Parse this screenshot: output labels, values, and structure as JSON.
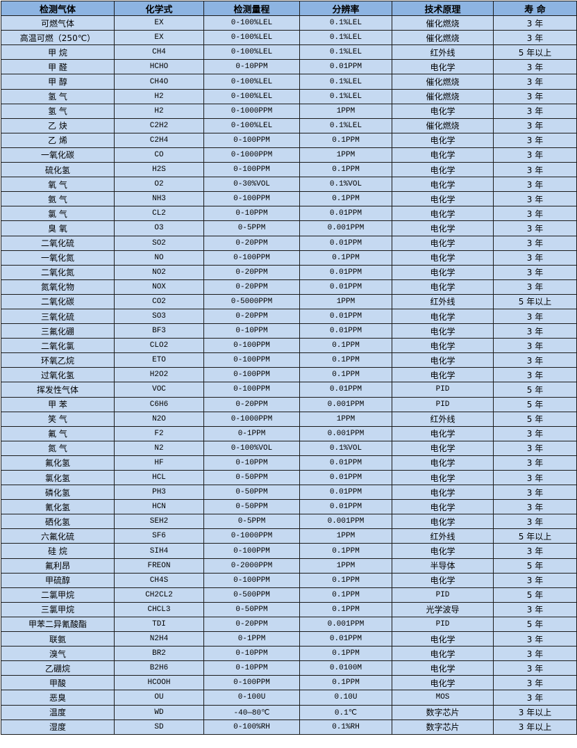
{
  "colors": {
    "header_bg": "#8DB4E2",
    "row_bg": "#C5D9F1",
    "border": "#1a1a1a"
  },
  "table": {
    "headers": [
      "检测气体",
      "化学式",
      "检测量程",
      "分辨率",
      "技术原理",
      "寿 命"
    ],
    "rows": [
      [
        "可燃气体",
        "EX",
        "0-100%LEL",
        "0.1%LEL",
        "催化燃烧",
        "3 年"
      ],
      [
        "高温可燃（250℃）",
        "EX",
        "0-100%LEL",
        "0.1%LEL",
        "催化燃烧",
        "3 年"
      ],
      [
        "甲 烷",
        "CH4",
        "0-100%LEL",
        "0.1%LEL",
        "红外线",
        "5 年以上"
      ],
      [
        "甲 醛",
        "HCHO",
        "0-10PPM",
        "0.01PPM",
        "电化学",
        "3 年"
      ],
      [
        "甲 醇",
        "CH4O",
        "0-100%LEL",
        "0.1%LEL",
        "催化燃烧",
        "3 年"
      ],
      [
        "氢 气",
        "H2",
        "0-100%LEL",
        "0.1%LEL",
        "催化燃烧",
        "3 年"
      ],
      [
        "氢 气",
        "H2",
        "0-1000PPM",
        "1PPM",
        "电化学",
        "3 年"
      ],
      [
        "乙 炔",
        "C2H2",
        "0-100%LEL",
        "0.1%LEL",
        "催化燃烧",
        "3 年"
      ],
      [
        "乙 烯",
        "C2H4",
        "0-100PPM",
        "0.1PPM",
        "电化学",
        "3 年"
      ],
      [
        "一氧化碳",
        "CO",
        "0-1000PPM",
        "1PPM",
        "电化学",
        "3 年"
      ],
      [
        "硫化氢",
        "H2S",
        "0-100PPM",
        "0.1PPM",
        "电化学",
        "3 年"
      ],
      [
        "氧 气",
        "O2",
        "0-30%VOL",
        "0.1%VOL",
        "电化学",
        "3 年"
      ],
      [
        "氨 气",
        "NH3",
        "0-100PPM",
        "0.1PPM",
        "电化学",
        "3 年"
      ],
      [
        "氯 气",
        "CL2",
        "0-10PPM",
        "0.01PPM",
        "电化学",
        "3 年"
      ],
      [
        "臭 氧",
        "O3",
        "0-5PPM",
        "0.001PPM",
        "电化学",
        "3 年"
      ],
      [
        "二氧化硫",
        "SO2",
        "0-20PPM",
        "0.01PPM",
        "电化学",
        "3 年"
      ],
      [
        "一氧化氮",
        "NO",
        "0-100PPM",
        "0.1PPM",
        "电化学",
        "3 年"
      ],
      [
        "二氧化氮",
        "NO2",
        "0-20PPM",
        "0.01PPM",
        "电化学",
        "3 年"
      ],
      [
        "氮氧化物",
        "NOX",
        "0-20PPM",
        "0.01PPM",
        "电化学",
        "3 年"
      ],
      [
        "二氧化碳",
        "CO2",
        "0-5000PPM",
        "1PPM",
        "红外线",
        "5 年以上"
      ],
      [
        "三氧化硫",
        "SO3",
        "0-20PPM",
        "0.01PPM",
        "电化学",
        "3 年"
      ],
      [
        "三氟化硼",
        "BF3",
        "0-10PPM",
        "0.01PPM",
        "电化学",
        "3 年"
      ],
      [
        "二氧化氯",
        "CLO2",
        "0-100PPM",
        "0.1PPM",
        "电化学",
        "3 年"
      ],
      [
        "环氧乙烷",
        "ETO",
        "0-100PPM",
        "0.1PPM",
        "电化学",
        "3 年"
      ],
      [
        "过氧化氢",
        "H2O2",
        "0-100PPM",
        "0.1PPM",
        "电化学",
        "3 年"
      ],
      [
        "挥发性气体",
        "VOC",
        "0-100PPM",
        "0.01PPM",
        "PID",
        "5 年"
      ],
      [
        "甲 苯",
        "C6H6",
        "0-20PPM",
        "0.001PPM",
        "PID",
        "5 年"
      ],
      [
        "笑 气",
        "N2O",
        "0-1000PPM",
        "1PPM",
        "红外线",
        "5 年"
      ],
      [
        "氟 气",
        "F2",
        "0-1PPM",
        "0.001PPM",
        "电化学",
        "3 年"
      ],
      [
        "氮 气",
        "N2",
        "0-100%VOL",
        "0.1%VOL",
        "电化学",
        "3 年"
      ],
      [
        "氟化氢",
        "HF",
        "0-10PPM",
        "0.01PPM",
        "电化学",
        "3 年"
      ],
      [
        "氯化氢",
        "HCL",
        "0-50PPM",
        "0.01PPM",
        "电化学",
        "3 年"
      ],
      [
        "磷化氢",
        "PH3",
        "0-50PPM",
        "0.01PPM",
        "电化学",
        "3 年"
      ],
      [
        "氰化氢",
        "HCN",
        "0-50PPM",
        "0.01PPM",
        "电化学",
        "3 年"
      ],
      [
        "硒化氢",
        "SEH2",
        "0-5PPM",
        "0.001PPM",
        "电化学",
        "3 年"
      ],
      [
        "六氟化硫",
        "SF6",
        "0-1000PPM",
        "1PPM",
        "红外线",
        "5 年以上"
      ],
      [
        "硅 烷",
        "SIH4",
        "0-100PPM",
        "0.1PPM",
        "电化学",
        "3 年"
      ],
      [
        "氟利昂",
        "FREON",
        "0-2000PPM",
        "1PPM",
        "半导体",
        "5 年"
      ],
      [
        "甲硫醇",
        "CH4S",
        "0-100PPM",
        "0.1PPM",
        "电化学",
        "3 年"
      ],
      [
        "二氯甲烷",
        "CH2CL2",
        "0-500PPM",
        "0.1PPM",
        "PID",
        "5 年"
      ],
      [
        "三氯甲烷",
        "CHCL3",
        "0-50PPM",
        "0.1PPM",
        "光学波导",
        "3 年"
      ],
      [
        "甲苯二异氰酸酯",
        "TDI",
        "0-20PPM",
        "0.001PPM",
        "PID",
        "5 年"
      ],
      [
        "联氨",
        "N2H4",
        "0-1PPM",
        "0.01PPM",
        "电化学",
        "3 年"
      ],
      [
        "溴气",
        "BR2",
        "0-10PPM",
        "0.1PPM",
        "电化学",
        "3 年"
      ],
      [
        "乙硼烷",
        "B2H6",
        "0-10PPM",
        "0.0100M",
        "电化学",
        "3 年"
      ],
      [
        "甲酸",
        "HCOOH",
        "0-100PPM",
        "0.1PPM",
        "电化学",
        "3 年"
      ],
      [
        "恶臭",
        "OU",
        "0-100U",
        "0.10U",
        "MOS",
        "3 年"
      ],
      [
        "温度",
        "WD",
        "-40—80℃",
        "0.1℃",
        "数字芯片",
        "3 年以上"
      ],
      [
        "湿度",
        "SD",
        "0-100%RH",
        "0.1%RH",
        "数字芯片",
        "3 年以上"
      ]
    ]
  }
}
